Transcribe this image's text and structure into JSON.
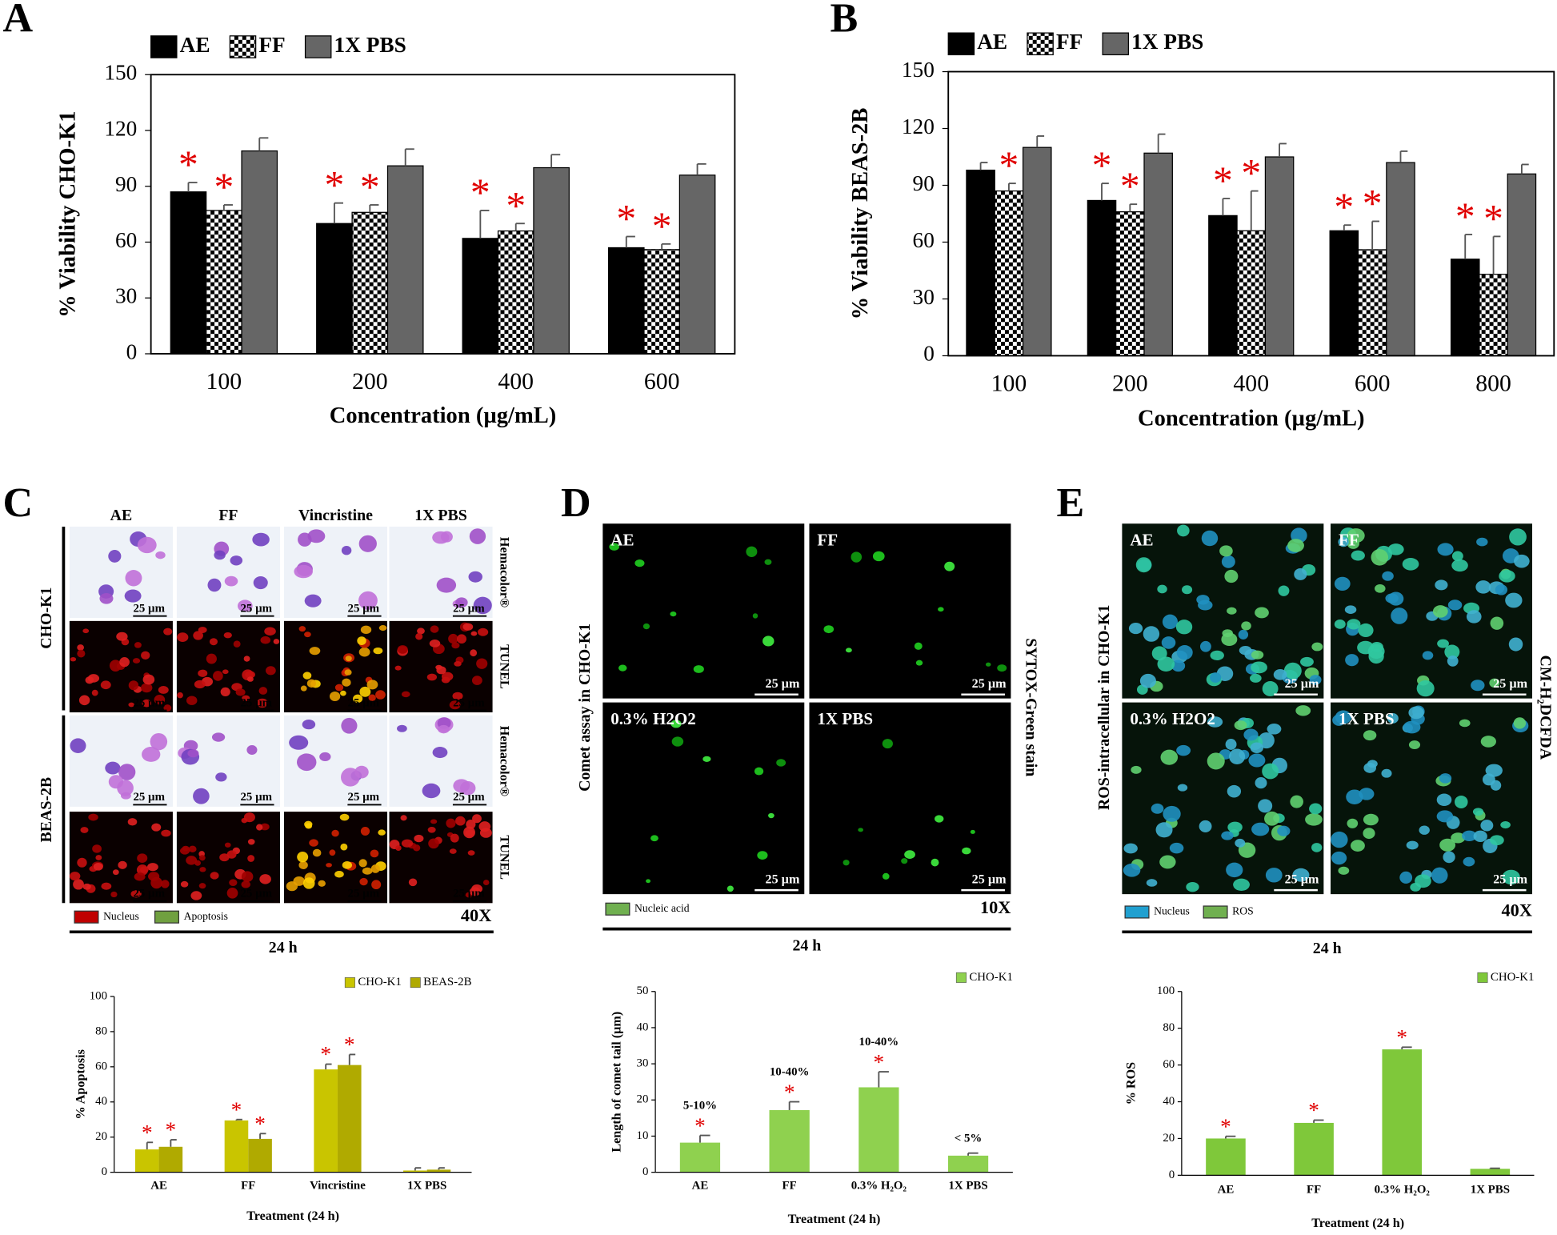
{
  "chart_data": [
    {
      "type": "bar",
      "xlabel": "Concentration (µg/mL)",
      "ylabel": "% Viability CHO-K1",
      "categories": [
        "100",
        "200",
        "400",
        "600"
      ],
      "series": [
        {
          "name": "AE",
          "color": "#000000",
          "values": [
            87,
            70,
            62,
            57
          ],
          "errors": [
            5,
            11,
            15,
            6
          ],
          "significance": [
            "*",
            "*",
            "*",
            "*"
          ]
        },
        {
          "name": "FF",
          "color": "#000000",
          "pattern": "checker",
          "values": [
            77,
            76,
            66,
            56
          ],
          "errors": [
            3,
            4,
            4,
            3
          ],
          "significance": [
            "*",
            "*",
            "*",
            "*"
          ]
        },
        {
          "name": "1X PBS",
          "color": "#666666",
          "values": [
            109,
            101,
            100,
            96
          ],
          "errors": [
            7,
            9,
            7,
            6
          ]
        }
      ],
      "ylim": [
        0,
        150
      ],
      "yticks": [
        0,
        30,
        60,
        90,
        120,
        150
      ],
      "legend": "top-left",
      "frame": true
    },
    {
      "type": "bar",
      "xlabel": "Concentration (µg/mL)",
      "ylabel": "% Viability BEAS-2B",
      "categories": [
        "100",
        "200",
        "400",
        "600",
        "800"
      ],
      "series": [
        {
          "name": "AE",
          "color": "#000000",
          "values": [
            98,
            82,
            74,
            66,
            51
          ],
          "errors": [
            4,
            9,
            9,
            3,
            13
          ],
          "significance": [
            null,
            "*",
            "*",
            "*",
            "*"
          ]
        },
        {
          "name": "FF",
          "color": "#000000",
          "pattern": "checker",
          "values": [
            87,
            76,
            66,
            56,
            43
          ],
          "errors": [
            4,
            4,
            21,
            15,
            20
          ],
          "significance": [
            "*",
            "*",
            "*",
            "*",
            "*"
          ]
        },
        {
          "name": "1X PBS",
          "color": "#666666",
          "values": [
            110,
            107,
            105,
            102,
            96
          ],
          "errors": [
            6,
            10,
            7,
            6,
            5
          ]
        }
      ],
      "ylim": [
        0,
        150
      ],
      "yticks": [
        0,
        30,
        60,
        90,
        120,
        150
      ],
      "legend": "top-left",
      "frame": true
    },
    {
      "type": "bar",
      "xlabel": "Treatment (24 h)",
      "ylabel": "% Apoptosis",
      "categories": [
        "AE",
        "FF",
        "Vincristine",
        "1X PBS"
      ],
      "series": [
        {
          "name": "CHO-K1",
          "color": "#c9c500",
          "values": [
            13,
            29.5,
            58.5,
            1
          ],
          "errors": [
            4,
            0.5,
            3,
            1.5
          ],
          "significance": [
            "*",
            "*",
            "*",
            null
          ]
        },
        {
          "name": "BEAS-2B",
          "color": "#b0aa00",
          "values": [
            14.5,
            19,
            61,
            1.5
          ],
          "errors": [
            4,
            3,
            6,
            1
          ],
          "significance": [
            "*",
            "*",
            "*",
            null
          ]
        }
      ],
      "ylim": [
        0,
        100
      ],
      "yticks": [
        0,
        20,
        40,
        60,
        80,
        100
      ],
      "legend": "top-right",
      "frame": false
    },
    {
      "type": "bar",
      "xlabel": "Treatment (24 h)",
      "ylabel": "Length of comet tail (µm)",
      "categories": [
        "AE",
        "FF",
        "0.3% H₂O₂",
        "1X PBS"
      ],
      "series": [
        {
          "name": "CHO-K1",
          "color": "#8fd14f",
          "values": [
            8.2,
            17.2,
            23.5,
            4.6
          ],
          "errors": [
            2,
            2.3,
            4.3,
            0.7
          ],
          "significance": [
            "*",
            "*",
            "*",
            null
          ]
        }
      ],
      "annotations": [
        "5-10%",
        "10-40%",
        "10-40%",
        "< 5%"
      ],
      "ylim": [
        0,
        50
      ],
      "yticks": [
        0,
        10,
        20,
        30,
        40,
        50
      ],
      "legend": "top-right",
      "frame": false
    },
    {
      "type": "bar",
      "xlabel": "Treatment (24 h)",
      "ylabel": "% ROS",
      "categories": [
        "AE",
        "FF",
        "0.3% H₂O₂",
        "1X PBS"
      ],
      "series": [
        {
          "name": "CHO-K1",
          "color": "#7fc83a",
          "values": [
            20,
            28.5,
            68.5,
            3.5
          ],
          "errors": [
            1.2,
            1.5,
            1.2,
            0.3
          ],
          "significance": [
            "*",
            "*",
            "*",
            null
          ]
        }
      ],
      "ylim": [
        0,
        100
      ],
      "yticks": [
        0,
        20,
        40,
        60,
        80,
        100
      ],
      "legend": "top-right",
      "frame": false
    }
  ],
  "figure": {
    "panel_letters": [
      "A",
      "B",
      "C",
      "D",
      "E"
    ],
    "scale_bar": "25 µm",
    "C": {
      "columns": [
        "AE",
        "FF",
        "Vincristine",
        "1X PBS"
      ],
      "rows": [
        "CHO-K1",
        "BEAS-2B"
      ],
      "stains": [
        "Hemacolor®",
        "TUNEL"
      ],
      "legend": [
        "Nucleus",
        "Apoptosis"
      ],
      "magnification": "40X",
      "time": "24 h"
    },
    "D": {
      "panels": [
        "AE",
        "FF",
        "0.3% H2O2",
        "1X PBS"
      ],
      "side_label": "Comet assay in CHO-K1",
      "stain": "SYTOX-Green stain",
      "legend": [
        "Nucleic acid"
      ],
      "magnification": "10X",
      "time": "24 h"
    },
    "E": {
      "panels": [
        "AE",
        "FF",
        "0.3% H2O2",
        "1X PBS"
      ],
      "side_label": "ROS-intracellular  in CHO-K1",
      "stain": "CM-H₂DCFDA",
      "legend": [
        "Nucleus",
        "ROS"
      ],
      "magnification": "40X",
      "time": "24 h"
    }
  }
}
